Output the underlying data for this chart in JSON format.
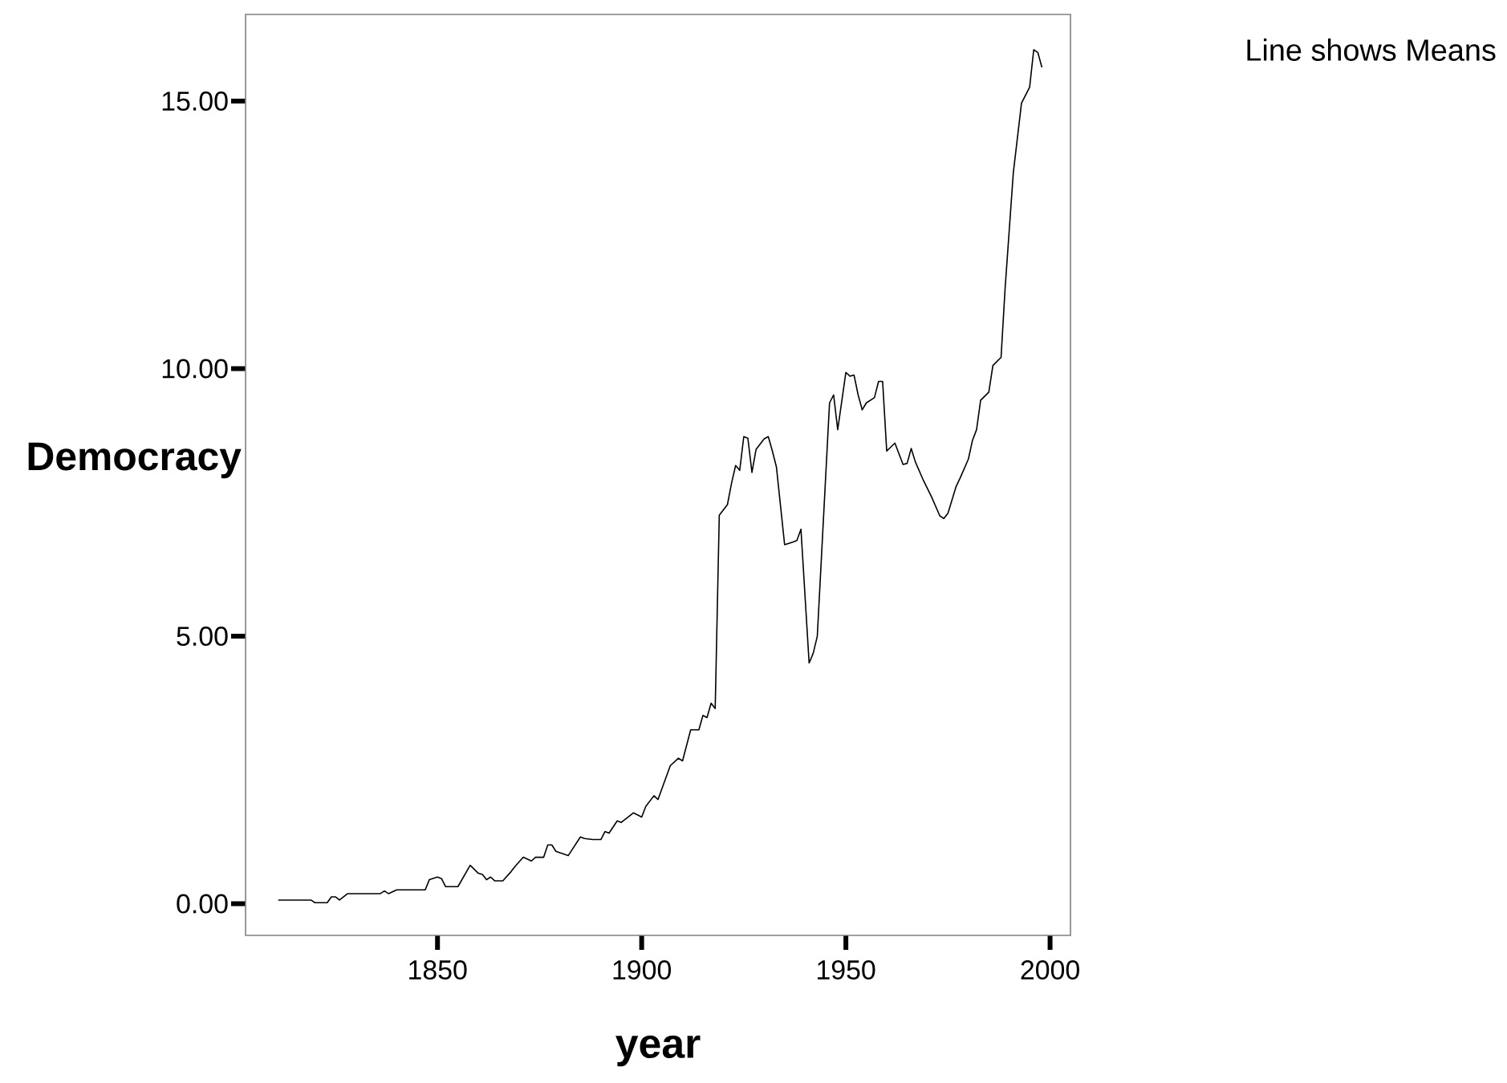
{
  "chart_data": {
    "type": "line",
    "xlabel": "year",
    "ylabel": "Democracy",
    "annotations": [
      "Line shows Means"
    ],
    "color": "#000000",
    "xlim": [
      1803,
      2005
    ],
    "ylim": [
      -0.59,
      16.62
    ],
    "xticks": [
      1850,
      1900,
      1950,
      2000
    ],
    "yticks": [
      {
        "value": 0,
        "label": "0.00"
      },
      {
        "value": 5,
        "label": "5.00"
      },
      {
        "value": 10,
        "label": "10.00"
      },
      {
        "value": 15,
        "label": "15.00"
      }
    ],
    "x": [
      1811,
      1819,
      1820,
      1823,
      1824,
      1825,
      1826,
      1828,
      1836,
      1837,
      1838,
      1840,
      1847,
      1848,
      1850,
      1851,
      1852,
      1855,
      1858,
      1860,
      1861,
      1862,
      1863,
      1864,
      1866,
      1868,
      1869,
      1871,
      1873,
      1874,
      1876,
      1877,
      1878,
      1879,
      1882,
      1885,
      1886,
      1888,
      1890,
      1891,
      1892,
      1894,
      1895,
      1898,
      1900,
      1901,
      1903,
      1904,
      1907,
      1909,
      1910,
      1912,
      1914,
      1915,
      1916,
      1917,
      1918,
      1919,
      1921,
      1922,
      1923,
      1924,
      1925,
      1926,
      1927,
      1928,
      1930,
      1931,
      1932,
      1933,
      1935,
      1937,
      1938,
      1939,
      1941,
      1942,
      1943,
      1946,
      1947,
      1948,
      1950,
      1951,
      1952,
      1953,
      1954,
      1955,
      1957,
      1958,
      1959,
      1960,
      1962,
      1964,
      1965,
      1966,
      1967,
      1969,
      1971,
      1973,
      1974,
      1975,
      1977,
      1978,
      1980,
      1981,
      1982,
      1983,
      1985,
      1986,
      1988,
      1989,
      1991,
      1993,
      1995,
      1996,
      1997,
      1998
    ],
    "values": [
      0.07,
      0.07,
      0.02,
      0.02,
      0.13,
      0.13,
      0.07,
      0.19,
      0.19,
      0.24,
      0.19,
      0.26,
      0.26,
      0.45,
      0.5,
      0.47,
      0.32,
      0.32,
      0.72,
      0.57,
      0.55,
      0.45,
      0.5,
      0.43,
      0.43,
      0.6,
      0.7,
      0.87,
      0.8,
      0.87,
      0.87,
      1.1,
      1.1,
      0.98,
      0.9,
      1.25,
      1.22,
      1.2,
      1.2,
      1.35,
      1.32,
      1.55,
      1.52,
      1.7,
      1.62,
      1.82,
      2.02,
      1.95,
      2.58,
      2.72,
      2.67,
      3.25,
      3.25,
      3.52,
      3.48,
      3.75,
      3.65,
      7.26,
      7.46,
      7.86,
      8.19,
      8.1,
      8.73,
      8.7,
      8.06,
      8.49,
      8.69,
      8.73,
      8.46,
      8.16,
      6.71,
      6.76,
      6.79,
      7.0,
      4.5,
      4.68,
      5.0,
      9.36,
      9.51,
      8.86,
      9.93,
      9.86,
      9.88,
      9.51,
      9.23,
      9.36,
      9.46,
      9.76,
      9.76,
      8.46,
      8.61,
      8.21,
      8.23,
      8.51,
      8.26,
      7.91,
      7.6,
      7.25,
      7.2,
      7.3,
      7.8,
      7.96,
      8.31,
      8.66,
      8.86,
      9.41,
      9.56,
      10.06,
      10.21,
      11.51,
      13.66,
      14.96,
      15.26,
      15.96,
      15.91,
      15.63
    ]
  }
}
